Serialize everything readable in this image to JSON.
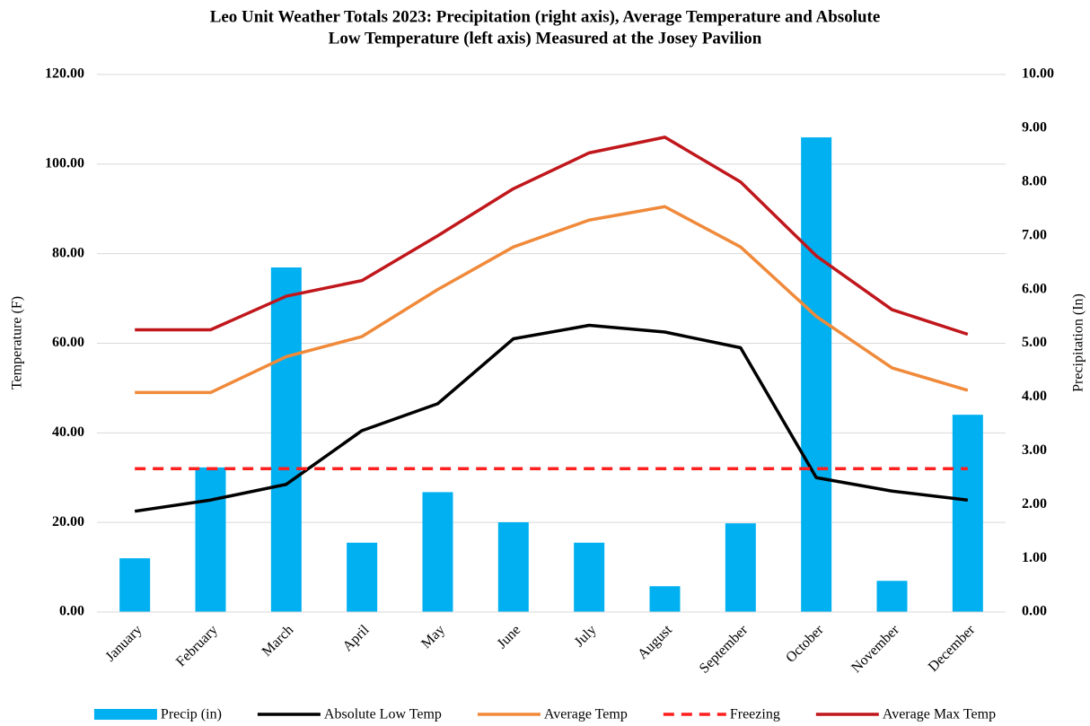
{
  "chart_data": {
    "type": "combo",
    "title": [
      "Leo Unit Weather Totals 2023: Precipitation (right axis), Average Temperature and Absolute",
      "Low Temperature (left axis) Measured at the Josey Pavilion"
    ],
    "y_label": "Temperature (F)",
    "y2_label": "Precipitation (In)",
    "categories": [
      "January",
      "February",
      "March",
      "April",
      "May",
      "June",
      "July",
      "August",
      "September",
      "October",
      "November",
      "December"
    ],
    "ylim": [
      0,
      120
    ],
    "yticks": [
      {
        "value": 0,
        "label": "0.00"
      },
      {
        "value": 20,
        "label": "20.00"
      },
      {
        "value": 40,
        "label": "40.00"
      },
      {
        "value": 60,
        "label": "60.00"
      },
      {
        "value": 80,
        "label": "80.00"
      },
      {
        "value": 100,
        "label": "100.00"
      },
      {
        "value": 120,
        "label": "120.00"
      }
    ],
    "y2lim": [
      0,
      10
    ],
    "y2ticks": [
      {
        "value": 0,
        "label": "0.00"
      },
      {
        "value": 1,
        "label": "1.00"
      },
      {
        "value": 2,
        "label": "2.00"
      },
      {
        "value": 3,
        "label": "3.00"
      },
      {
        "value": 4,
        "label": "4.00"
      },
      {
        "value": 5,
        "label": "5.00"
      },
      {
        "value": 6,
        "label": "6.00"
      },
      {
        "value": 7,
        "label": "7.00"
      },
      {
        "value": 8,
        "label": "8.00"
      },
      {
        "value": 9,
        "label": "9.00"
      },
      {
        "value": 10,
        "label": "10.00"
      }
    ],
    "grid": true,
    "legend": "bottom",
    "series": [
      {
        "name": "Precip (in)",
        "type": "bar",
        "axis": "y2",
        "color": "#00b0f0",
        "values": [
          1.0,
          2.69,
          6.41,
          1.29,
          2.23,
          1.67,
          1.29,
          0.48,
          1.65,
          8.83,
          0.58,
          3.67
        ]
      },
      {
        "name": "Absolute Low Temp",
        "type": "line",
        "color": "#000000",
        "values": [
          22.5,
          25,
          28.5,
          40.5,
          46.5,
          61,
          64,
          62.5,
          59,
          30,
          27,
          25
        ]
      },
      {
        "name": "Average Temp",
        "type": "line",
        "color": "#f08a3a",
        "values": [
          49,
          49,
          57,
          61.5,
          72,
          81.5,
          87.5,
          90.5,
          81.5,
          66,
          54.5,
          49.5
        ]
      },
      {
        "name": "Freezing",
        "type": "line",
        "dashed": true,
        "color": "#ff1f1f",
        "values": [
          32,
          32,
          32,
          32,
          32,
          32,
          32,
          32,
          32,
          32,
          32,
          32
        ]
      },
      {
        "name": "Average Max Temp",
        "type": "line",
        "color": "#c0171c",
        "values": [
          63,
          63,
          70.5,
          74,
          84,
          94.5,
          102.5,
          106,
          96,
          79.5,
          67.5,
          62
        ]
      }
    ]
  }
}
